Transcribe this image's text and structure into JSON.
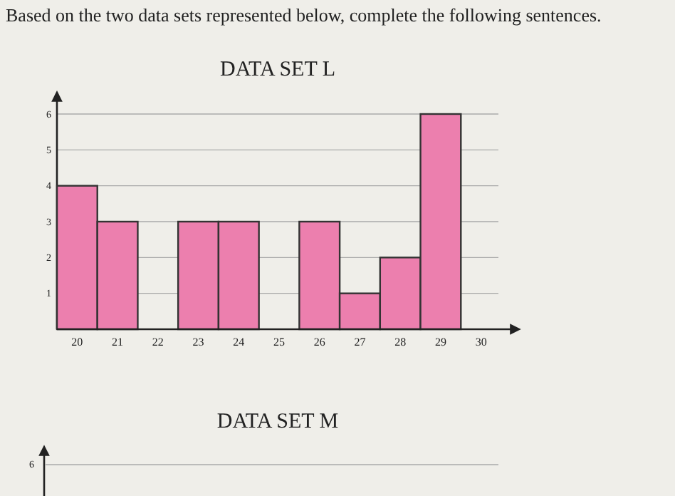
{
  "chart_data": [
    {
      "type": "bar",
      "title": "DATA SET L",
      "annotations": [
        "Based on the two data sets represented below, complete the following sentences."
      ],
      "categories": [
        "20",
        "21",
        "22",
        "23",
        "24",
        "25",
        "26",
        "27",
        "28",
        "29",
        "30"
      ],
      "values": [
        4,
        3,
        0,
        3,
        3,
        0,
        3,
        1,
        2,
        6,
        0
      ],
      "color": "#ec7fae",
      "ylim": [
        0,
        6.5
      ],
      "yticks": [
        1,
        2,
        3,
        4,
        5,
        6
      ],
      "grid": "y"
    },
    {
      "type": "other",
      "title": "DATA SET M",
      "annotations": [
        "6"
      ]
    }
  ]
}
